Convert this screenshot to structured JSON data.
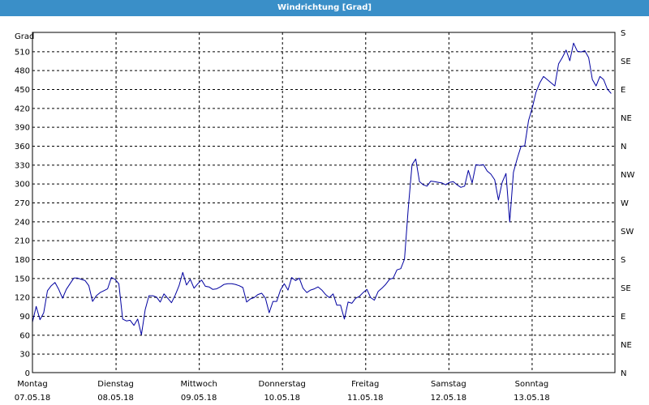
{
  "window": {
    "title": "Windrichtung [Grad]"
  },
  "chart_data": {
    "type": "line",
    "title": "Windrichtung [Grad]",
    "ylabel": "Grad",
    "ylim": [
      0,
      540
    ],
    "yticks": [
      0,
      30,
      60,
      90,
      120,
      150,
      180,
      210,
      240,
      270,
      300,
      330,
      360,
      390,
      420,
      450,
      480,
      510
    ],
    "secondary_axis": {
      "labels": [
        "N",
        "NE",
        "E",
        "SE",
        "S",
        "SW",
        "W",
        "NW",
        "N",
        "NE",
        "E",
        "SE",
        "S"
      ],
      "values": [
        0,
        45,
        90,
        135,
        180,
        225,
        270,
        315,
        360,
        405,
        450,
        495,
        540
      ]
    },
    "days": [
      {
        "name": "Montag",
        "date": "07.05.18"
      },
      {
        "name": "Dienstag",
        "date": "08.05.18"
      },
      {
        "name": "Mittwoch",
        "date": "09.05.18"
      },
      {
        "name": "Donnerstag",
        "date": "10.05.18"
      },
      {
        "name": "Freitag",
        "date": "11.05.18"
      },
      {
        "name": "Samstag",
        "date": "12.05.18"
      },
      {
        "name": "Sonntag",
        "date": "13.05.18"
      }
    ],
    "xlim": [
      "07.05.18 00:00",
      "14.05.18 00:00"
    ],
    "grid": true,
    "colors": {
      "line": "#0000a0",
      "titlebar": "#3a8fc8",
      "grid": "#000000"
    },
    "series": [
      {
        "values": [
          80,
          105,
          84,
          95,
          130,
          138,
          143,
          132,
          118,
          132,
          141,
          150,
          150,
          148,
          146,
          138,
          113,
          122,
          127,
          130,
          133,
          151,
          148,
          141,
          85,
          82,
          83,
          75,
          85,
          60,
          100,
          122,
          122,
          120,
          112,
          125,
          118,
          111,
          123,
          138,
          159,
          139,
          148,
          134,
          141,
          147,
          137,
          136,
          132,
          133,
          136,
          140,
          141,
          141,
          140,
          138,
          135,
          112,
          117,
          119,
          124,
          126,
          118,
          95,
          113,
          113,
          131,
          141,
          131,
          151,
          146,
          150,
          134,
          127,
          131,
          133,
          136,
          131,
          124,
          119,
          125,
          107,
          107,
          85,
          112,
          110,
          118,
          121,
          127,
          132,
          119,
          115,
          129,
          134,
          140,
          148,
          150,
          163,
          165,
          180,
          260,
          330,
          339,
          303,
          298,
          296,
          304,
          303,
          302,
          301,
          298,
          302,
          303,
          298,
          294,
          296,
          321,
          301,
          330,
          329,
          330,
          320,
          315,
          306,
          274,
          302,
          316,
          239,
          318,
          340,
          359,
          360,
          400,
          420,
          445,
          460,
          470,
          465,
          460,
          455,
          490,
          500,
          512,
          495,
          523,
          510,
          509,
          511,
          500,
          465,
          455,
          470,
          465,
          450,
          443
        ]
      }
    ]
  }
}
